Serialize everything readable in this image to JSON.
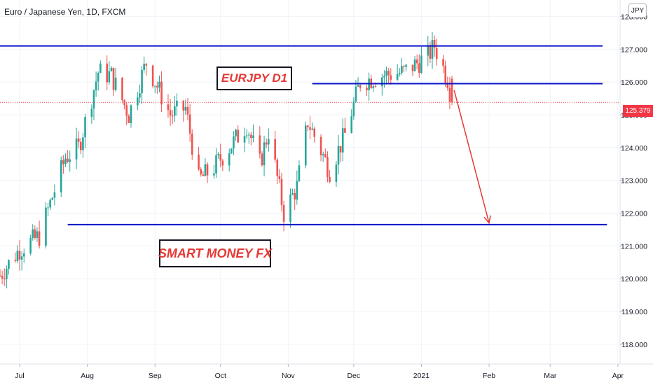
{
  "header": {
    "title": "Euro / Japanese Yen, 1D, FXCM"
  },
  "currency_button": "JPY",
  "last_price": "125.379",
  "annotations": {
    "top_label": "EURJPY D1",
    "bottom_label": "SMART MONEY FX"
  },
  "colors": {
    "up": "#26a69a",
    "down": "#ef5350",
    "level_line": "#0a14c8",
    "arrow": "#e53935",
    "price_tag": "#f23645",
    "grid": "#f0f3fa",
    "axis_text": "#131722"
  },
  "chart_data": {
    "type": "candlestick",
    "title": "Euro / Japanese Yen, 1D, FXCM",
    "ylim": [
      117.4,
      128.5
    ],
    "y_ticks": [
      "118.000",
      "119.000",
      "120.000",
      "121.000",
      "122.000",
      "123.000",
      "124.000",
      "125.000",
      "126.000",
      "127.000",
      "128.000"
    ],
    "x_ticks": [
      "Jul",
      "Aug",
      "Sep",
      "Oct",
      "Nov",
      "Dec",
      "2021",
      "Feb",
      "Mar",
      "Apr"
    ],
    "x_tick_dates": [
      "2020-07-01",
      "2020-08-01",
      "2020-09-01",
      "2020-10-01",
      "2020-11-01",
      "2020-12-01",
      "2021-01-01",
      "2021-02-01",
      "2021-03-01",
      "2021-04-01"
    ],
    "date_range": [
      "2020-06-22",
      "2021-04-02"
    ],
    "last_price": 125.379,
    "price_line": 125.379,
    "horizontal_levels": [
      {
        "price": 127.1,
        "from": "2020-06-22",
        "to": "2021-03-25"
      },
      {
        "price": 125.95,
        "from": "2020-11-12",
        "to": "2021-03-25"
      },
      {
        "price": 121.65,
        "from": "2020-07-23",
        "to": "2021-03-27"
      }
    ],
    "projection_arrow": {
      "from": [
        "2021-01-16",
        125.75
      ],
      "to": [
        "2021-02-01",
        121.7
      ]
    },
    "anchors": [
      [
        "2020-06-22",
        120.1
      ],
      [
        "2020-07-01",
        120.9
      ],
      [
        "2020-07-10",
        121.3
      ],
      [
        "2020-07-22",
        123.7
      ],
      [
        "2020-07-28",
        124.0
      ],
      [
        "2020-08-06",
        126.3
      ],
      [
        "2020-08-12",
        126.2
      ],
      [
        "2020-08-20",
        125.0
      ],
      [
        "2020-08-28",
        126.6
      ],
      [
        "2020-09-08",
        125.0
      ],
      [
        "2020-09-15",
        125.2
      ],
      [
        "2020-09-21",
        123.0
      ],
      [
        "2020-09-28",
        123.4
      ],
      [
        "2020-10-05",
        124.0
      ],
      [
        "2020-10-13",
        124.7
      ],
      [
        "2020-10-19",
        123.5
      ],
      [
        "2020-10-23",
        124.5
      ],
      [
        "2020-10-30",
        122.0
      ],
      [
        "2020-11-05",
        122.8
      ],
      [
        "2020-11-10",
        124.8
      ],
      [
        "2020-11-20",
        123.3
      ],
      [
        "2020-11-27",
        124.4
      ],
      [
        "2020-12-04",
        126.0
      ],
      [
        "2020-12-14",
        126.2
      ],
      [
        "2020-12-24",
        126.3
      ],
      [
        "2021-01-04",
        126.8
      ],
      [
        "2021-01-07",
        127.1
      ],
      [
        "2021-01-13",
        126.1
      ],
      [
        "2021-01-15",
        125.379
      ]
    ]
  }
}
